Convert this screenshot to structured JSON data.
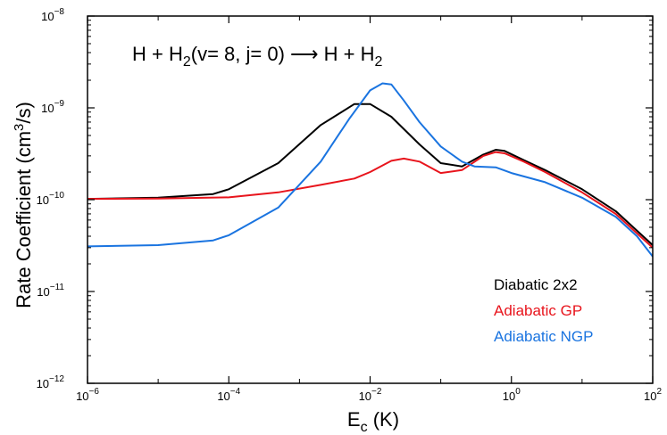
{
  "chart_data": {
    "type": "line",
    "annotation": {
      "prefix": "H + H",
      "sub_a": "2",
      "mid": "(v= 8, j= 0)  ⟶  H + H",
      "sub_b": "2"
    },
    "xlabel": {
      "main": "E",
      "sub": "c",
      "rest": " (K)"
    },
    "ylabel": {
      "main": "Rate Coefficient  (cm",
      "sup": "3",
      "rest": "/s)"
    },
    "x_scale": "log",
    "y_scale": "log",
    "xlim": [
      1e-06,
      100
    ],
    "ylim": [
      1e-12,
      1e-08
    ],
    "x_ticks": [
      {
        "value": 1e-06,
        "base": "10",
        "exp": "−6"
      },
      {
        "value": 0.0001,
        "base": "10",
        "exp": "−4"
      },
      {
        "value": 0.01,
        "base": "10",
        "exp": "−2"
      },
      {
        "value": 1,
        "base": "10",
        "exp": "0"
      },
      {
        "value": 100,
        "base": "10",
        "exp": "2"
      }
    ],
    "y_ticks": [
      {
        "value": 1e-12,
        "base": "10",
        "exp": "−12"
      },
      {
        "value": 1e-11,
        "base": "10",
        "exp": "−11"
      },
      {
        "value": 1e-10,
        "base": "10",
        "exp": "−10"
      },
      {
        "value": 1e-09,
        "base": "10",
        "exp": "−9"
      },
      {
        "value": 1e-08,
        "base": "10",
        "exp": "−8"
      }
    ],
    "grid": false,
    "legend_position": "lower-right",
    "series": [
      {
        "name": "Diabatic  2x2",
        "color": "#000000",
        "x": [
          1e-06,
          1e-05,
          6e-05,
          0.0001,
          0.0005,
          0.002,
          0.006,
          0.01,
          0.02,
          0.05,
          0.1,
          0.2,
          0.4,
          0.6,
          0.8,
          1.5,
          3,
          10,
          30,
          100
        ],
        "y": [
          1.02e-10,
          1.05e-10,
          1.15e-10,
          1.3e-10,
          2.5e-10,
          6.5e-10,
          1.1e-09,
          1.1e-09,
          8e-10,
          4e-10,
          2.5e-10,
          2.3e-10,
          3.1e-10,
          3.5e-10,
          3.4e-10,
          2.7e-10,
          2.1e-10,
          1.3e-10,
          7.5e-11,
          3.2e-11
        ]
      },
      {
        "name": "Adiabatic  GP",
        "color": "#e8141c",
        "x": [
          1e-06,
          1e-05,
          0.0001,
          0.0005,
          0.002,
          0.006,
          0.01,
          0.02,
          0.03,
          0.05,
          0.1,
          0.2,
          0.4,
          0.6,
          0.8,
          1.5,
          3,
          10,
          30,
          100
        ],
        "y": [
          1.02e-10,
          1.03e-10,
          1.06e-10,
          1.2e-10,
          1.45e-10,
          1.7e-10,
          2e-10,
          2.65e-10,
          2.8e-10,
          2.6e-10,
          1.95e-10,
          2.1e-10,
          3e-10,
          3.3e-10,
          3.2e-10,
          2.6e-10,
          2e-10,
          1.2e-10,
          7e-11,
          3e-11
        ]
      },
      {
        "name": "Adiabatic  NGP",
        "color": "#1a74e0",
        "x": [
          1e-06,
          1e-05,
          6e-05,
          0.0001,
          0.0005,
          0.002,
          0.005,
          0.01,
          0.015,
          0.02,
          0.03,
          0.05,
          0.1,
          0.2,
          0.3,
          0.6,
          1,
          3,
          10,
          30,
          60,
          100
        ],
        "y": [
          3.1e-11,
          3.2e-11,
          3.6e-11,
          4.1e-11,
          8.2e-11,
          2.6e-10,
          7.5e-10,
          1.55e-09,
          1.85e-09,
          1.8e-09,
          1.2e-09,
          7e-10,
          3.8e-10,
          2.6e-10,
          2.3e-10,
          2.25e-10,
          1.95e-10,
          1.55e-10,
          1.05e-10,
          6.5e-11,
          4e-11,
          2.4e-11
        ]
      }
    ]
  }
}
